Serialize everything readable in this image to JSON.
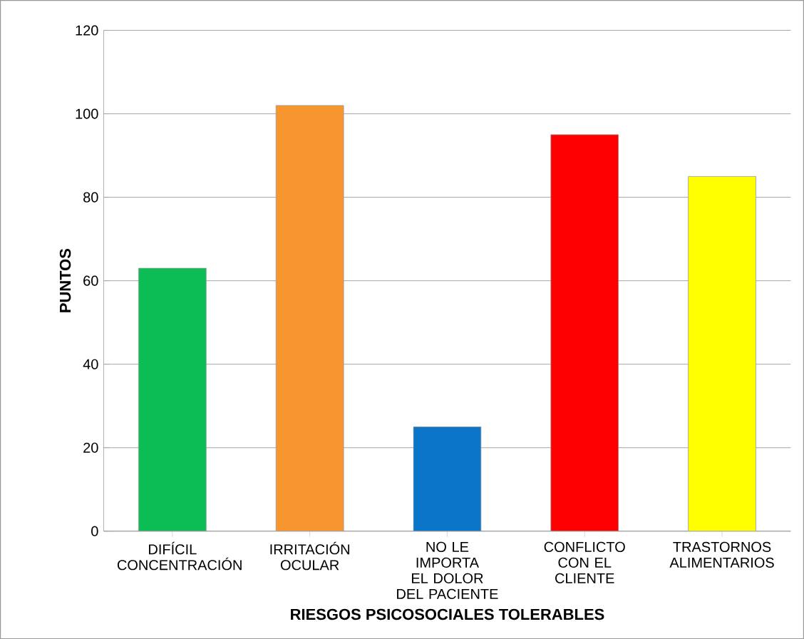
{
  "chart_data": {
    "type": "bar",
    "xlabel": "RIESGOS PSICOSOCIALES TOLERABLES",
    "ylabel": "PUNTOS",
    "categories": [
      "DIFÍCIL CONCENTRACIÓN",
      "IRRITACIÓN OCULAR",
      "NO LE IMPORTA EL DOLOR DEL PACIENTE",
      "CONFLICTO CON EL CLIENTE",
      "TRASTORNOS ALIMENTARIOS"
    ],
    "values": [
      63,
      102,
      25,
      95,
      85
    ],
    "colors": [
      "#0cbd55",
      "#f7952e",
      "#0a75c9",
      "#ff0000",
      "#ffff00"
    ],
    "ylim": [
      0,
      120
    ],
    "yticks": [
      0,
      20,
      40,
      60,
      80,
      100,
      120
    ],
    "grid": "y"
  }
}
